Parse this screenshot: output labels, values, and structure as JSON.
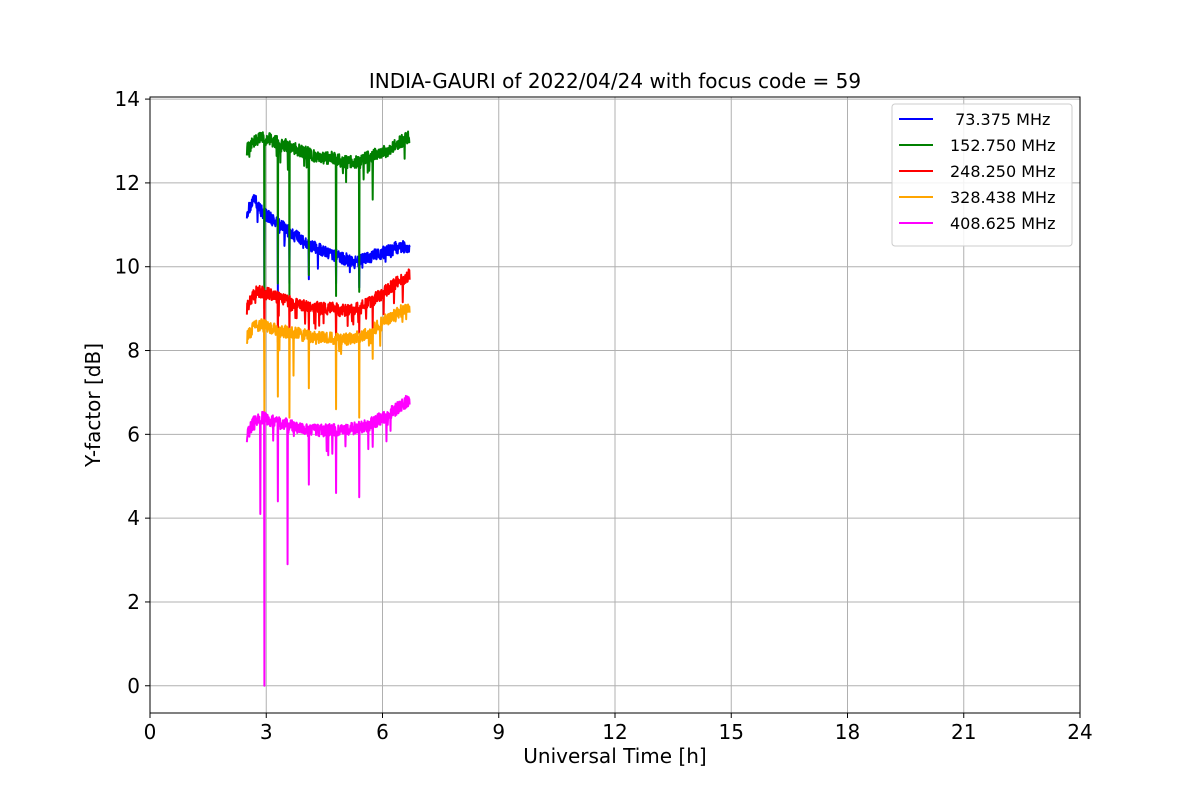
{
  "chart_data": {
    "type": "line",
    "title": "INDIA-GAURI of 2022/04/24 with focus code = 59",
    "xlabel": "Universal Time [h]",
    "ylabel": "Y-factor [dB]",
    "xlim": [
      0,
      24
    ],
    "ylim": [
      -0.65,
      14.05
    ],
    "xticks": [
      0,
      3,
      6,
      9,
      12,
      15,
      18,
      21,
      24
    ],
    "yticks": [
      0,
      2,
      4,
      6,
      8,
      10,
      12,
      14
    ],
    "grid": true,
    "legend_position": "top-right",
    "series": [
      {
        "name": " 73.375 MHz",
        "color": "#0000ff",
        "x": [
          2.5,
          2.7,
          2.9,
          3.2,
          3.5,
          3.8,
          4.1,
          4.4,
          4.7,
          5.0,
          5.3,
          5.6,
          5.9,
          6.2,
          6.5,
          6.7
        ],
        "y": [
          11.3,
          11.6,
          11.3,
          11.1,
          10.9,
          10.7,
          10.5,
          10.4,
          10.3,
          10.2,
          10.1,
          10.2,
          10.3,
          10.4,
          10.5,
          10.4
        ],
        "dips": [
          [
            2.95,
            9.2
          ],
          [
            3.3,
            9.4
          ],
          [
            3.6,
            9.6
          ],
          [
            4.1,
            9.7
          ],
          [
            4.8,
            9.6
          ],
          [
            5.4,
            9.5
          ]
        ]
      },
      {
        "name": "152.750 MHz",
        "color": "#008000",
        "x": [
          2.5,
          2.7,
          2.9,
          3.2,
          3.5,
          3.8,
          4.1,
          4.4,
          4.7,
          5.0,
          5.3,
          5.6,
          5.9,
          6.2,
          6.5,
          6.7
        ],
        "y": [
          12.8,
          13.0,
          13.1,
          13.0,
          12.9,
          12.8,
          12.7,
          12.6,
          12.6,
          12.5,
          12.5,
          12.6,
          12.7,
          12.8,
          13.0,
          13.1
        ],
        "dips": [
          [
            2.95,
            9.0
          ],
          [
            3.3,
            9.6
          ],
          [
            3.6,
            9.2
          ],
          [
            4.1,
            9.8
          ],
          [
            4.8,
            9.3
          ],
          [
            5.4,
            9.4
          ],
          [
            5.75,
            11.6
          ]
        ]
      },
      {
        "name": "248.250 MHz",
        "color": "#ff0000",
        "x": [
          2.5,
          2.7,
          2.9,
          3.2,
          3.5,
          3.8,
          4.1,
          4.4,
          4.7,
          5.0,
          5.3,
          5.6,
          5.9,
          6.2,
          6.5,
          6.7
        ],
        "y": [
          9.0,
          9.4,
          9.4,
          9.3,
          9.2,
          9.1,
          9.05,
          9.0,
          9.0,
          8.95,
          9.0,
          9.1,
          9.3,
          9.5,
          9.7,
          9.8
        ],
        "dips": [
          [
            2.95,
            8.0
          ],
          [
            3.3,
            8.2
          ],
          [
            3.6,
            8.3
          ],
          [
            4.1,
            8.4
          ],
          [
            4.8,
            8.2
          ],
          [
            5.4,
            8.4
          ],
          [
            5.75,
            8.5
          ]
        ]
      },
      {
        "name": "328.438 MHz",
        "color": "#ffa500",
        "x": [
          2.5,
          2.7,
          2.9,
          3.2,
          3.5,
          3.8,
          4.1,
          4.4,
          4.7,
          5.0,
          5.3,
          5.6,
          5.9,
          6.2,
          6.5,
          6.7
        ],
        "y": [
          8.3,
          8.6,
          8.6,
          8.5,
          8.45,
          8.4,
          8.35,
          8.3,
          8.3,
          8.25,
          8.3,
          8.4,
          8.6,
          8.8,
          8.95,
          9.05
        ],
        "dips": [
          [
            2.95,
            6.5
          ],
          [
            3.3,
            6.9
          ],
          [
            3.6,
            6.4
          ],
          [
            3.7,
            7.4
          ],
          [
            4.1,
            7.1
          ],
          [
            4.8,
            6.6
          ],
          [
            5.4,
            6.4
          ],
          [
            5.75,
            7.8
          ]
        ]
      },
      {
        "name": "408.625 MHz",
        "color": "#ff00ff",
        "x": [
          2.5,
          2.7,
          2.9,
          3.2,
          3.5,
          3.8,
          4.1,
          4.4,
          4.7,
          5.0,
          5.3,
          5.6,
          5.9,
          6.2,
          6.5,
          6.7
        ],
        "y": [
          5.95,
          6.35,
          6.4,
          6.3,
          6.25,
          6.15,
          6.1,
          6.1,
          6.1,
          6.1,
          6.15,
          6.2,
          6.35,
          6.5,
          6.7,
          6.85
        ],
        "dips": [
          [
            2.85,
            4.1
          ],
          [
            2.95,
            0.0
          ],
          [
            3.3,
            4.4
          ],
          [
            3.55,
            2.9
          ],
          [
            4.1,
            4.8
          ],
          [
            4.8,
            4.6
          ],
          [
            5.4,
            4.5
          ],
          [
            5.75,
            5.7
          ]
        ]
      }
    ]
  }
}
